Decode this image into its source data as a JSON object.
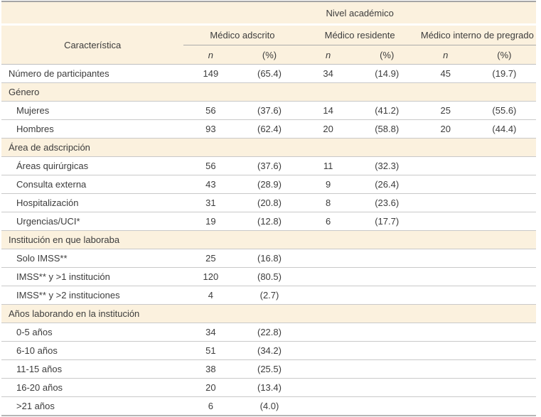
{
  "table": {
    "top_header": "Nivel académico",
    "col_header": "Característica",
    "groups": [
      {
        "label": "Médico adscrito"
      },
      {
        "label": "Médico residente"
      },
      {
        "label": "Médico interno de pregrado"
      }
    ],
    "subcols": {
      "n": "n",
      "pct": "(%)"
    },
    "rows": [
      {
        "type": "data",
        "label": "Número de participantes",
        "indent": false,
        "values": [
          "149",
          "(65.4)",
          "34",
          "(14.9)",
          "45",
          "(19.7)"
        ]
      },
      {
        "type": "section",
        "label": "Género"
      },
      {
        "type": "data",
        "label": "Mujeres",
        "indent": true,
        "values": [
          "56",
          "(37.6)",
          "14",
          "(41.2)",
          "25",
          "(55.6)"
        ]
      },
      {
        "type": "data",
        "label": "Hombres",
        "indent": true,
        "values": [
          "93",
          "(62.4)",
          "20",
          "(58.8)",
          "20",
          "(44.4)"
        ]
      },
      {
        "type": "section",
        "label": "Área de adscripción"
      },
      {
        "type": "data",
        "label": "Áreas quirúrgicas",
        "indent": true,
        "values": [
          "56",
          "(37.6)",
          "11",
          "(32.3)",
          "",
          ""
        ]
      },
      {
        "type": "data",
        "label": "Consulta externa",
        "indent": true,
        "values": [
          "43",
          "(28.9)",
          "9",
          "(26.4)",
          "",
          ""
        ]
      },
      {
        "type": "data",
        "label": "Hospitalización",
        "indent": true,
        "values": [
          "31",
          "(20.8)",
          "8",
          "(23.6)",
          "",
          ""
        ]
      },
      {
        "type": "data",
        "label": "Urgencias/UCI*",
        "indent": true,
        "values": [
          "19",
          "(12.8)",
          "6",
          "(17.7)",
          "",
          ""
        ]
      },
      {
        "type": "section",
        "label": "Institución en que laboraba"
      },
      {
        "type": "data",
        "label": "Solo IMSS**",
        "indent": true,
        "values": [
          "25",
          "(16.8)",
          "",
          "",
          "",
          ""
        ]
      },
      {
        "type": "data",
        "label": "IMSS** y >1 institución",
        "indent": true,
        "values": [
          "120",
          "(80.5)",
          "",
          "",
          "",
          ""
        ]
      },
      {
        "type": "data",
        "label": "IMSS** y >2 instituciones",
        "indent": true,
        "values": [
          "4",
          "(2.7)",
          "",
          "",
          "",
          ""
        ]
      },
      {
        "type": "section",
        "label": "Años laborando en la institución"
      },
      {
        "type": "data",
        "label": "0-5 años",
        "indent": true,
        "values": [
          "34",
          "(22.8)",
          "",
          "",
          "",
          ""
        ]
      },
      {
        "type": "data",
        "label": "6-10 años",
        "indent": true,
        "values": [
          "51",
          "(34.2)",
          "",
          "",
          "",
          ""
        ]
      },
      {
        "type": "data",
        "label": "11-15 años",
        "indent": true,
        "values": [
          "38",
          "(25.5)",
          "",
          "",
          "",
          ""
        ]
      },
      {
        "type": "data",
        "label": "16-20 años",
        "indent": true,
        "values": [
          "20",
          "(13.4)",
          "",
          "",
          "",
          ""
        ]
      },
      {
        "type": "data",
        "label": ">21 años",
        "indent": true,
        "values": [
          "6",
          "(4.0)",
          "",
          "",
          "",
          ""
        ]
      }
    ],
    "colors": {
      "header_bg": "#fbf1de",
      "row_line": "#c9c9c9",
      "top_line": "#a5a5a5",
      "text": "#3c3c3c"
    }
  }
}
